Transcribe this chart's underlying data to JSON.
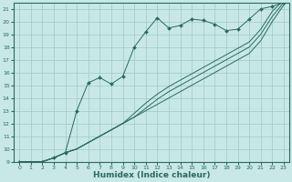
{
  "bg_color": "#c8e8e8",
  "grid_color": "#a0c8c8",
  "line_color": "#2a6a5a",
  "xlabel": "Humidex (Indice chaleur)",
  "xlabel_fontsize": 6.5,
  "ylim": [
    9,
    21.5
  ],
  "xlim": [
    -0.5,
    23.5
  ],
  "yticks": [
    9,
    10,
    11,
    12,
    13,
    14,
    15,
    16,
    17,
    18,
    19,
    20,
    21
  ],
  "xticks": [
    0,
    1,
    2,
    3,
    4,
    5,
    6,
    7,
    8,
    9,
    10,
    11,
    12,
    13,
    14,
    15,
    16,
    17,
    18,
    19,
    20,
    21,
    22,
    23
  ],
  "lines": [
    {
      "x": [
        0,
        1,
        2,
        3,
        4,
        5,
        6,
        7,
        8,
        9,
        10,
        11,
        12,
        13,
        14,
        15,
        16,
        17,
        18,
        19,
        20,
        21,
        22,
        23
      ],
      "y": [
        9,
        8.9,
        9.0,
        9.3,
        9.7,
        13.0,
        15.2,
        15.6,
        15.1,
        15.7,
        18.0,
        19.2,
        20.3,
        19.5,
        19.7,
        20.2,
        20.1,
        19.8,
        19.3,
        19.4,
        20.2,
        21.0,
        21.2,
        21.5
      ],
      "marker": true
    },
    {
      "x": [
        0,
        1,
        2,
        3,
        4,
        5,
        6,
        7,
        8,
        9,
        10,
        11,
        12,
        13,
        14,
        15,
        16,
        17,
        18,
        19,
        20,
        21,
        22,
        23
      ],
      "y": [
        9,
        9.0,
        9.0,
        9.3,
        9.7,
        10.0,
        10.5,
        11.0,
        11.5,
        12.0,
        12.5,
        13.0,
        13.5,
        14.0,
        14.5,
        15.0,
        15.5,
        16.0,
        16.5,
        17.0,
        17.5,
        18.5,
        20.0,
        21.3
      ],
      "marker": false
    },
    {
      "x": [
        0,
        1,
        2,
        3,
        4,
        5,
        6,
        7,
        8,
        9,
        10,
        11,
        12,
        13,
        14,
        15,
        16,
        17,
        18,
        19,
        20,
        21,
        22,
        23
      ],
      "y": [
        9,
        9.0,
        9.0,
        9.3,
        9.7,
        10.0,
        10.5,
        11.0,
        11.5,
        12.0,
        12.5,
        13.2,
        13.9,
        14.5,
        15.0,
        15.5,
        16.0,
        16.5,
        17.0,
        17.5,
        18.0,
        19.0,
        20.4,
        21.5
      ],
      "marker": false
    },
    {
      "x": [
        0,
        1,
        2,
        3,
        4,
        5,
        6,
        7,
        8,
        9,
        10,
        11,
        12,
        13,
        14,
        15,
        16,
        17,
        18,
        19,
        20,
        21,
        22,
        23
      ],
      "y": [
        9,
        9.0,
        9.0,
        9.3,
        9.7,
        10.0,
        10.5,
        11.0,
        11.5,
        12.0,
        12.8,
        13.6,
        14.3,
        14.9,
        15.4,
        15.9,
        16.4,
        16.9,
        17.4,
        17.9,
        18.4,
        19.4,
        20.8,
        21.7
      ],
      "marker": false
    }
  ]
}
